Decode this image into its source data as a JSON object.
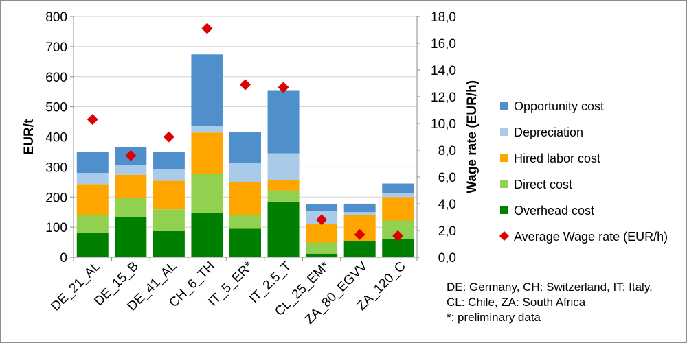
{
  "chart_data": {
    "type": "bar",
    "stacked": true,
    "categories": [
      "DE_21_AL",
      "DE_15_B",
      "DE_41_AL",
      "CH_6_TH",
      "IT_5_ER*",
      "IT_2,5_T",
      "CL_25_EM*",
      "ZA_80_EGVV",
      "ZA_120_C"
    ],
    "series": [
      {
        "name": "Overhead cost",
        "color": "#008000",
        "values": [
          80,
          133,
          87,
          147,
          95,
          185,
          12,
          53,
          62
        ]
      },
      {
        "name": "Direct cost",
        "color": "#92d050",
        "values": [
          60,
          63,
          72,
          130,
          45,
          37,
          37,
          0,
          60
        ]
      },
      {
        "name": "Hired labor cost",
        "color": "#ffa500",
        "values": [
          103,
          78,
          95,
          137,
          110,
          35,
          61,
          88,
          78
        ]
      },
      {
        "name": "Depreciation",
        "color": "#a9cbe9",
        "values": [
          37,
          32,
          38,
          23,
          62,
          88,
          45,
          9,
          12
        ]
      },
      {
        "name": "Opportunity cost",
        "color": "#4e8fcc",
        "values": [
          70,
          60,
          58,
          237,
          103,
          210,
          22,
          28,
          33
        ]
      }
    ],
    "line_series": {
      "name": "Average Wage rate (EUR/h)",
      "color": "#dd0000",
      "marker": "diamond",
      "axis": "right",
      "values": [
        10.3,
        7.6,
        9.0,
        17.1,
        12.9,
        12.7,
        2.8,
        1.7,
        1.6
      ]
    },
    "ylabel": "EUR/t",
    "ylim": [
      0,
      800
    ],
    "yticks": [
      "0",
      "100",
      "200",
      "300",
      "400",
      "500",
      "600",
      "700",
      "800"
    ],
    "y2label": "Wage rate (EUR/h)",
    "y2lim": [
      0,
      18
    ],
    "y2ticks": [
      "0,0",
      "2,0",
      "4,0",
      "6,0",
      "8,0",
      "10,0",
      "12,0",
      "14,0",
      "16,0",
      "18,0"
    ],
    "grid": true,
    "legend_position": "right",
    "legend": [
      "Opportunity cost",
      "Depreciation",
      "Hired labor cost",
      "Direct cost",
      "Overhead cost",
      "Average Wage rate (EUR/h)"
    ],
    "notes": [
      "DE: Germany, CH: Switzerland, IT: Italy,",
      "CL: Chile, ZA: South Africa",
      "*: preliminary data"
    ]
  }
}
